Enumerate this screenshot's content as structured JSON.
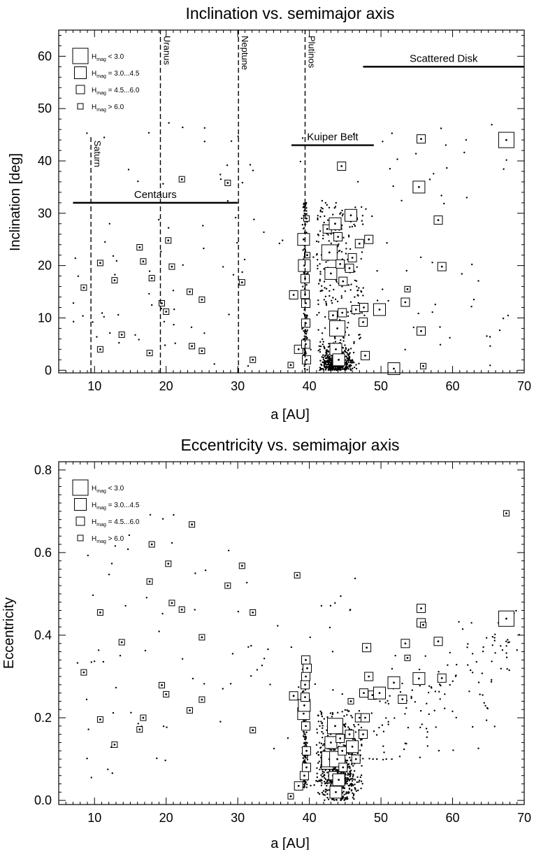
{
  "chart_data": [
    {
      "type": "scatter",
      "title": "Inclination vs. semimajor axis",
      "xlabel": "a [AU]",
      "ylabel": "Inclination [deg]",
      "xlim": [
        5,
        70
      ],
      "ylim": [
        -0.5,
        65
      ],
      "xticks": [
        10,
        20,
        30,
        40,
        50,
        60,
        70
      ],
      "yticks": [
        0,
        10,
        20,
        30,
        40,
        50,
        60
      ],
      "legend": {
        "placement": "top-left",
        "entries": [
          {
            "sub": "mag",
            "text": "< 3.0",
            "size": 4
          },
          {
            "sub": "mag",
            "text": "= 3.0...4.5",
            "size": 3
          },
          {
            "sub": "mag",
            "text": "= 4.5...6.0",
            "size": 2
          },
          {
            "sub": "mag",
            "text": "> 6.0",
            "size": 1
          }
        ]
      },
      "planet_lines": [
        {
          "label": "Saturn",
          "a": 9.5,
          "i_top": 45
        },
        {
          "label": "Uranus",
          "a": 19.2,
          "i_top": 65
        },
        {
          "label": "Neptune",
          "a": 30.1,
          "i_top": 65
        },
        {
          "label": "Plutinos",
          "a": 39.4,
          "i_top": 65
        }
      ],
      "regions": [
        {
          "label": "Centaurs",
          "a_from": 7,
          "a_to": 30,
          "i": 32
        },
        {
          "label": "Kuiper Belt",
          "a_from": 37.5,
          "a_to": 49,
          "i": 43
        },
        {
          "label": "Scattered Disk",
          "a_from": 47.5,
          "a_to": 70,
          "i": 58
        }
      ],
      "objects": [
        {
          "a": 8.5,
          "i": 15.8,
          "size": 1
        },
        {
          "a": 10.8,
          "i": 20.5,
          "size": 1
        },
        {
          "a": 10.8,
          "i": 4.0,
          "size": 1
        },
        {
          "a": 12.8,
          "i": 17.2,
          "size": 1
        },
        {
          "a": 13.8,
          "i": 6.8,
          "size": 1
        },
        {
          "a": 16.3,
          "i": 23.5,
          "size": 1
        },
        {
          "a": 16.8,
          "i": 20.8,
          "size": 1
        },
        {
          "a": 17.7,
          "i": 3.3,
          "size": 1
        },
        {
          "a": 18.0,
          "i": 17.6,
          "size": 1
        },
        {
          "a": 19.4,
          "i": 12.8,
          "size": 1
        },
        {
          "a": 20.0,
          "i": 11.2,
          "size": 1
        },
        {
          "a": 20.3,
          "i": 24.8,
          "size": 1
        },
        {
          "a": 20.8,
          "i": 19.8,
          "size": 1
        },
        {
          "a": 22.2,
          "i": 36.5,
          "size": 1
        },
        {
          "a": 23.3,
          "i": 15.0,
          "size": 1
        },
        {
          "a": 23.6,
          "i": 4.6,
          "size": 1
        },
        {
          "a": 25.0,
          "i": 13.5,
          "size": 1
        },
        {
          "a": 25.0,
          "i": 3.7,
          "size": 1
        },
        {
          "a": 28.6,
          "i": 35.8,
          "size": 1
        },
        {
          "a": 30.6,
          "i": 16.8,
          "size": 1
        },
        {
          "a": 32.1,
          "i": 2.0,
          "size": 1
        },
        {
          "a": 37.4,
          "i": 1.0,
          "size": 1
        },
        {
          "a": 37.8,
          "i": 14.4,
          "size": 2
        },
        {
          "a": 38.5,
          "i": 4.0,
          "size": 2
        },
        {
          "a": 39.2,
          "i": 25.0,
          "size": 3
        },
        {
          "a": 39.3,
          "i": 20.0,
          "size": 3
        },
        {
          "a": 39.4,
          "i": 17.5,
          "size": 2
        },
        {
          "a": 39.4,
          "i": 14.5,
          "size": 2
        },
        {
          "a": 39.5,
          "i": 12.8,
          "size": 2
        },
        {
          "a": 39.5,
          "i": 9.0,
          "size": 2
        },
        {
          "a": 39.5,
          "i": 5.0,
          "size": 2
        },
        {
          "a": 39.6,
          "i": 2.0,
          "size": 2
        },
        {
          "a": 39.6,
          "i": 29.0,
          "size": 1
        },
        {
          "a": 39.7,
          "i": 22.0,
          "size": 1
        },
        {
          "a": 42.5,
          "i": 27.0,
          "size": 2
        },
        {
          "a": 42.8,
          "i": 22.5,
          "size": 4
        },
        {
          "a": 43.0,
          "i": 18.5,
          "size": 3
        },
        {
          "a": 43.3,
          "i": 10.5,
          "size": 2
        },
        {
          "a": 43.6,
          "i": 28.0,
          "size": 3
        },
        {
          "a": 43.7,
          "i": 4.0,
          "size": 3
        },
        {
          "a": 43.9,
          "i": 8.0,
          "size": 4
        },
        {
          "a": 44.0,
          "i": 25.5,
          "size": 2
        },
        {
          "a": 44.1,
          "i": 2.0,
          "size": 3
        },
        {
          "a": 44.3,
          "i": 20.3,
          "size": 2
        },
        {
          "a": 44.5,
          "i": 39.0,
          "size": 2
        },
        {
          "a": 44.6,
          "i": 11.0,
          "size": 2
        },
        {
          "a": 44.7,
          "i": 17.0,
          "size": 2
        },
        {
          "a": 45.6,
          "i": 19.5,
          "size": 2
        },
        {
          "a": 45.8,
          "i": 29.6,
          "size": 3
        },
        {
          "a": 46.0,
          "i": 21.5,
          "size": 2
        },
        {
          "a": 46.5,
          "i": 11.6,
          "size": 2
        },
        {
          "a": 47.0,
          "i": 24.2,
          "size": 2
        },
        {
          "a": 47.5,
          "i": 9.2,
          "size": 2
        },
        {
          "a": 47.6,
          "i": 12.0,
          "size": 2
        },
        {
          "a": 47.8,
          "i": 2.8,
          "size": 2
        },
        {
          "a": 48.3,
          "i": 25.0,
          "size": 2
        },
        {
          "a": 49.8,
          "i": 11.6,
          "size": 3
        },
        {
          "a": 51.8,
          "i": 0.3,
          "size": 3
        },
        {
          "a": 53.4,
          "i": 13.0,
          "size": 2
        },
        {
          "a": 53.7,
          "i": 15.5,
          "size": 1
        },
        {
          "a": 55.3,
          "i": 35.0,
          "size": 3
        },
        {
          "a": 55.6,
          "i": 44.2,
          "size": 2
        },
        {
          "a": 55.6,
          "i": 7.5,
          "size": 2
        },
        {
          "a": 55.9,
          "i": 0.8,
          "size": 1
        },
        {
          "a": 58.0,
          "i": 28.7,
          "size": 2
        },
        {
          "a": 58.5,
          "i": 19.8,
          "size": 2
        },
        {
          "a": 67.5,
          "i": 44.0,
          "size": 4
        }
      ]
    },
    {
      "type": "scatter",
      "title": "Eccentricity vs. semimajor axis",
      "xlabel": "a [AU]",
      "ylabel": "Eccentricity",
      "xlim": [
        5,
        70
      ],
      "ylim": [
        -0.01,
        0.82
      ],
      "xticks": [
        10,
        20,
        30,
        40,
        50,
        60,
        70
      ],
      "yticks": [
        0.0,
        0.2,
        0.4,
        0.6,
        0.8
      ],
      "ytick_labels": [
        "0.0",
        "0.2",
        "0.4",
        "0.6",
        "0.8"
      ],
      "legend": {
        "placement": "top-left",
        "entries": [
          {
            "sub": "mag",
            "text": "< 3.0",
            "size": 4
          },
          {
            "sub": "mag",
            "text": "= 3.0...4.5",
            "size": 3
          },
          {
            "sub": "mag",
            "text": "= 4.5...6.0",
            "size": 2
          },
          {
            "sub": "mag",
            "text": "> 6.0",
            "size": 1
          }
        ]
      },
      "objects": [
        {
          "a": 8.5,
          "e": 0.31,
          "size": 1
        },
        {
          "a": 10.8,
          "e": 0.455,
          "size": 1
        },
        {
          "a": 10.8,
          "e": 0.196,
          "size": 1
        },
        {
          "a": 12.8,
          "e": 0.135,
          "size": 1
        },
        {
          "a": 13.8,
          "e": 0.383,
          "size": 1
        },
        {
          "a": 16.3,
          "e": 0.172,
          "size": 1
        },
        {
          "a": 16.8,
          "e": 0.2,
          "size": 1
        },
        {
          "a": 17.7,
          "e": 0.53,
          "size": 1
        },
        {
          "a": 18.0,
          "e": 0.62,
          "size": 1
        },
        {
          "a": 19.4,
          "e": 0.279,
          "size": 1
        },
        {
          "a": 20.0,
          "e": 0.257,
          "size": 1
        },
        {
          "a": 20.3,
          "e": 0.573,
          "size": 1
        },
        {
          "a": 20.8,
          "e": 0.478,
          "size": 1
        },
        {
          "a": 22.2,
          "e": 0.462,
          "size": 1
        },
        {
          "a": 23.3,
          "e": 0.218,
          "size": 1
        },
        {
          "a": 23.6,
          "e": 0.668,
          "size": 1
        },
        {
          "a": 25.0,
          "e": 0.395,
          "size": 1
        },
        {
          "a": 25.0,
          "e": 0.244,
          "size": 1
        },
        {
          "a": 28.6,
          "e": 0.52,
          "size": 1
        },
        {
          "a": 30.6,
          "e": 0.568,
          "size": 1
        },
        {
          "a": 32.1,
          "e": 0.455,
          "size": 1
        },
        {
          "a": 32.1,
          "e": 0.17,
          "size": 1
        },
        {
          "a": 37.4,
          "e": 0.01,
          "size": 1
        },
        {
          "a": 37.8,
          "e": 0.253,
          "size": 2
        },
        {
          "a": 38.3,
          "e": 0.545,
          "size": 1
        },
        {
          "a": 38.5,
          "e": 0.035,
          "size": 2
        },
        {
          "a": 39.2,
          "e": 0.21,
          "size": 3
        },
        {
          "a": 39.3,
          "e": 0.23,
          "size": 3
        },
        {
          "a": 39.3,
          "e": 0.06,
          "size": 2
        },
        {
          "a": 39.4,
          "e": 0.25,
          "size": 2
        },
        {
          "a": 39.4,
          "e": 0.28,
          "size": 2
        },
        {
          "a": 39.5,
          "e": 0.34,
          "size": 2
        },
        {
          "a": 39.5,
          "e": 0.3,
          "size": 2
        },
        {
          "a": 39.5,
          "e": 0.18,
          "size": 2
        },
        {
          "a": 39.6,
          "e": 0.12,
          "size": 2
        },
        {
          "a": 39.6,
          "e": 0.08,
          "size": 2
        },
        {
          "a": 39.7,
          "e": 0.32,
          "size": 2
        },
        {
          "a": 42.5,
          "e": 0.09,
          "size": 3
        },
        {
          "a": 42.8,
          "e": 0.1,
          "size": 4
        },
        {
          "a": 43.0,
          "e": 0.14,
          "size": 3
        },
        {
          "a": 43.3,
          "e": 0.06,
          "size": 2
        },
        {
          "a": 43.6,
          "e": 0.18,
          "size": 4
        },
        {
          "a": 43.7,
          "e": 0.02,
          "size": 3
        },
        {
          "a": 43.9,
          "e": 0.1,
          "size": 4
        },
        {
          "a": 44.1,
          "e": 0.05,
          "size": 3
        },
        {
          "a": 44.3,
          "e": 0.15,
          "size": 2
        },
        {
          "a": 44.6,
          "e": 0.12,
          "size": 2
        },
        {
          "a": 44.7,
          "e": 0.08,
          "size": 2
        },
        {
          "a": 45.6,
          "e": 0.16,
          "size": 2
        },
        {
          "a": 45.8,
          "e": 0.24,
          "size": 1
        },
        {
          "a": 46.0,
          "e": 0.13,
          "size": 3
        },
        {
          "a": 46.5,
          "e": 0.1,
          "size": 2
        },
        {
          "a": 47.0,
          "e": 0.2,
          "size": 2
        },
        {
          "a": 47.5,
          "e": 0.16,
          "size": 2
        },
        {
          "a": 47.6,
          "e": 0.26,
          "size": 2
        },
        {
          "a": 47.8,
          "e": 0.2,
          "size": 2
        },
        {
          "a": 48.0,
          "e": 0.37,
          "size": 2
        },
        {
          "a": 48.3,
          "e": 0.3,
          "size": 2
        },
        {
          "a": 48.8,
          "e": 0.255,
          "size": 2
        },
        {
          "a": 49.8,
          "e": 0.26,
          "size": 3
        },
        {
          "a": 51.8,
          "e": 0.285,
          "size": 3
        },
        {
          "a": 53.0,
          "e": 0.245,
          "size": 2
        },
        {
          "a": 53.4,
          "e": 0.38,
          "size": 2
        },
        {
          "a": 53.7,
          "e": 0.345,
          "size": 1
        },
        {
          "a": 55.3,
          "e": 0.295,
          "size": 3
        },
        {
          "a": 55.6,
          "e": 0.465,
          "size": 2
        },
        {
          "a": 55.6,
          "e": 0.43,
          "size": 2
        },
        {
          "a": 55.9,
          "e": 0.425,
          "size": 1
        },
        {
          "a": 58.0,
          "e": 0.385,
          "size": 2
        },
        {
          "a": 58.5,
          "e": 0.296,
          "size": 2
        },
        {
          "a": 67.5,
          "e": 0.44,
          "size": 4
        },
        {
          "a": 67.5,
          "e": 0.695,
          "size": 1
        }
      ]
    }
  ]
}
